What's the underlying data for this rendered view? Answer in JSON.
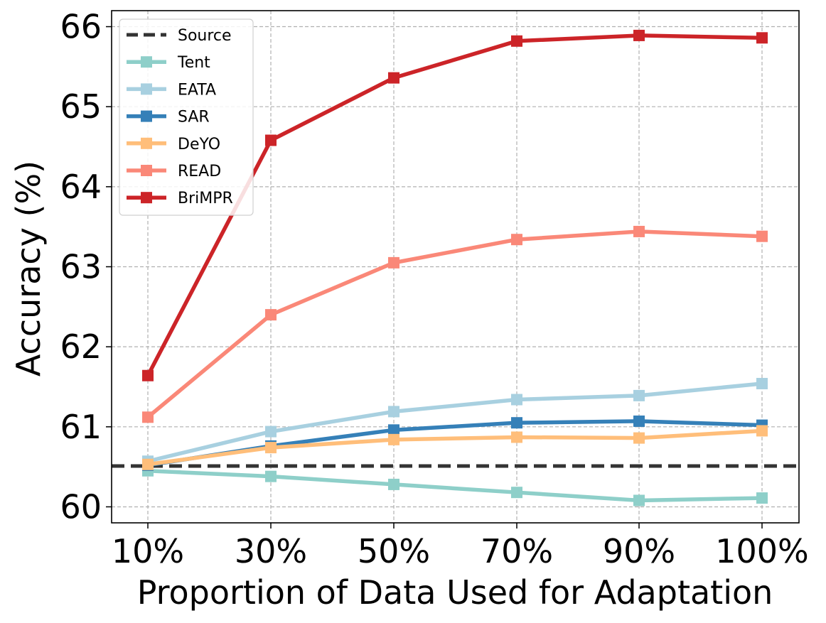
{
  "chart_data": {
    "type": "line",
    "title": "",
    "xlabel": "Proportion of Data Used for Adaptation",
    "ylabel": "Accuracy (%)",
    "categories": [
      "10%",
      "30%",
      "50%",
      "70%",
      "90%",
      "100%"
    ],
    "ylim": [
      59.8,
      66.2
    ],
    "yticks": [
      60,
      61,
      62,
      63,
      64,
      65,
      66
    ],
    "grid": true,
    "legend_position": "top-left",
    "baseline": {
      "name": "Source",
      "value": 60.51,
      "color": "#333333",
      "style": "dashed"
    },
    "series": [
      {
        "name": "Tent",
        "color": "#8ecfc9",
        "values": [
          60.45,
          60.38,
          60.28,
          60.18,
          60.08,
          60.11
        ]
      },
      {
        "name": "EATA",
        "color": "#a8d0e0",
        "values": [
          60.57,
          60.94,
          61.19,
          61.34,
          61.39,
          61.54
        ]
      },
      {
        "name": "SAR",
        "color": "#3580b8",
        "values": [
          60.52,
          60.76,
          60.96,
          61.05,
          61.07,
          61.02
        ]
      },
      {
        "name": "DeYO",
        "color": "#ffbe7a",
        "values": [
          60.53,
          60.74,
          60.84,
          60.87,
          60.86,
          60.95
        ]
      },
      {
        "name": "READ",
        "color": "#fa8878",
        "values": [
          61.12,
          62.4,
          63.05,
          63.34,
          63.44,
          63.38
        ]
      },
      {
        "name": "BriMPR",
        "color": "#cc2428",
        "values": [
          61.64,
          64.58,
          65.36,
          65.82,
          65.89,
          65.86
        ]
      }
    ]
  }
}
